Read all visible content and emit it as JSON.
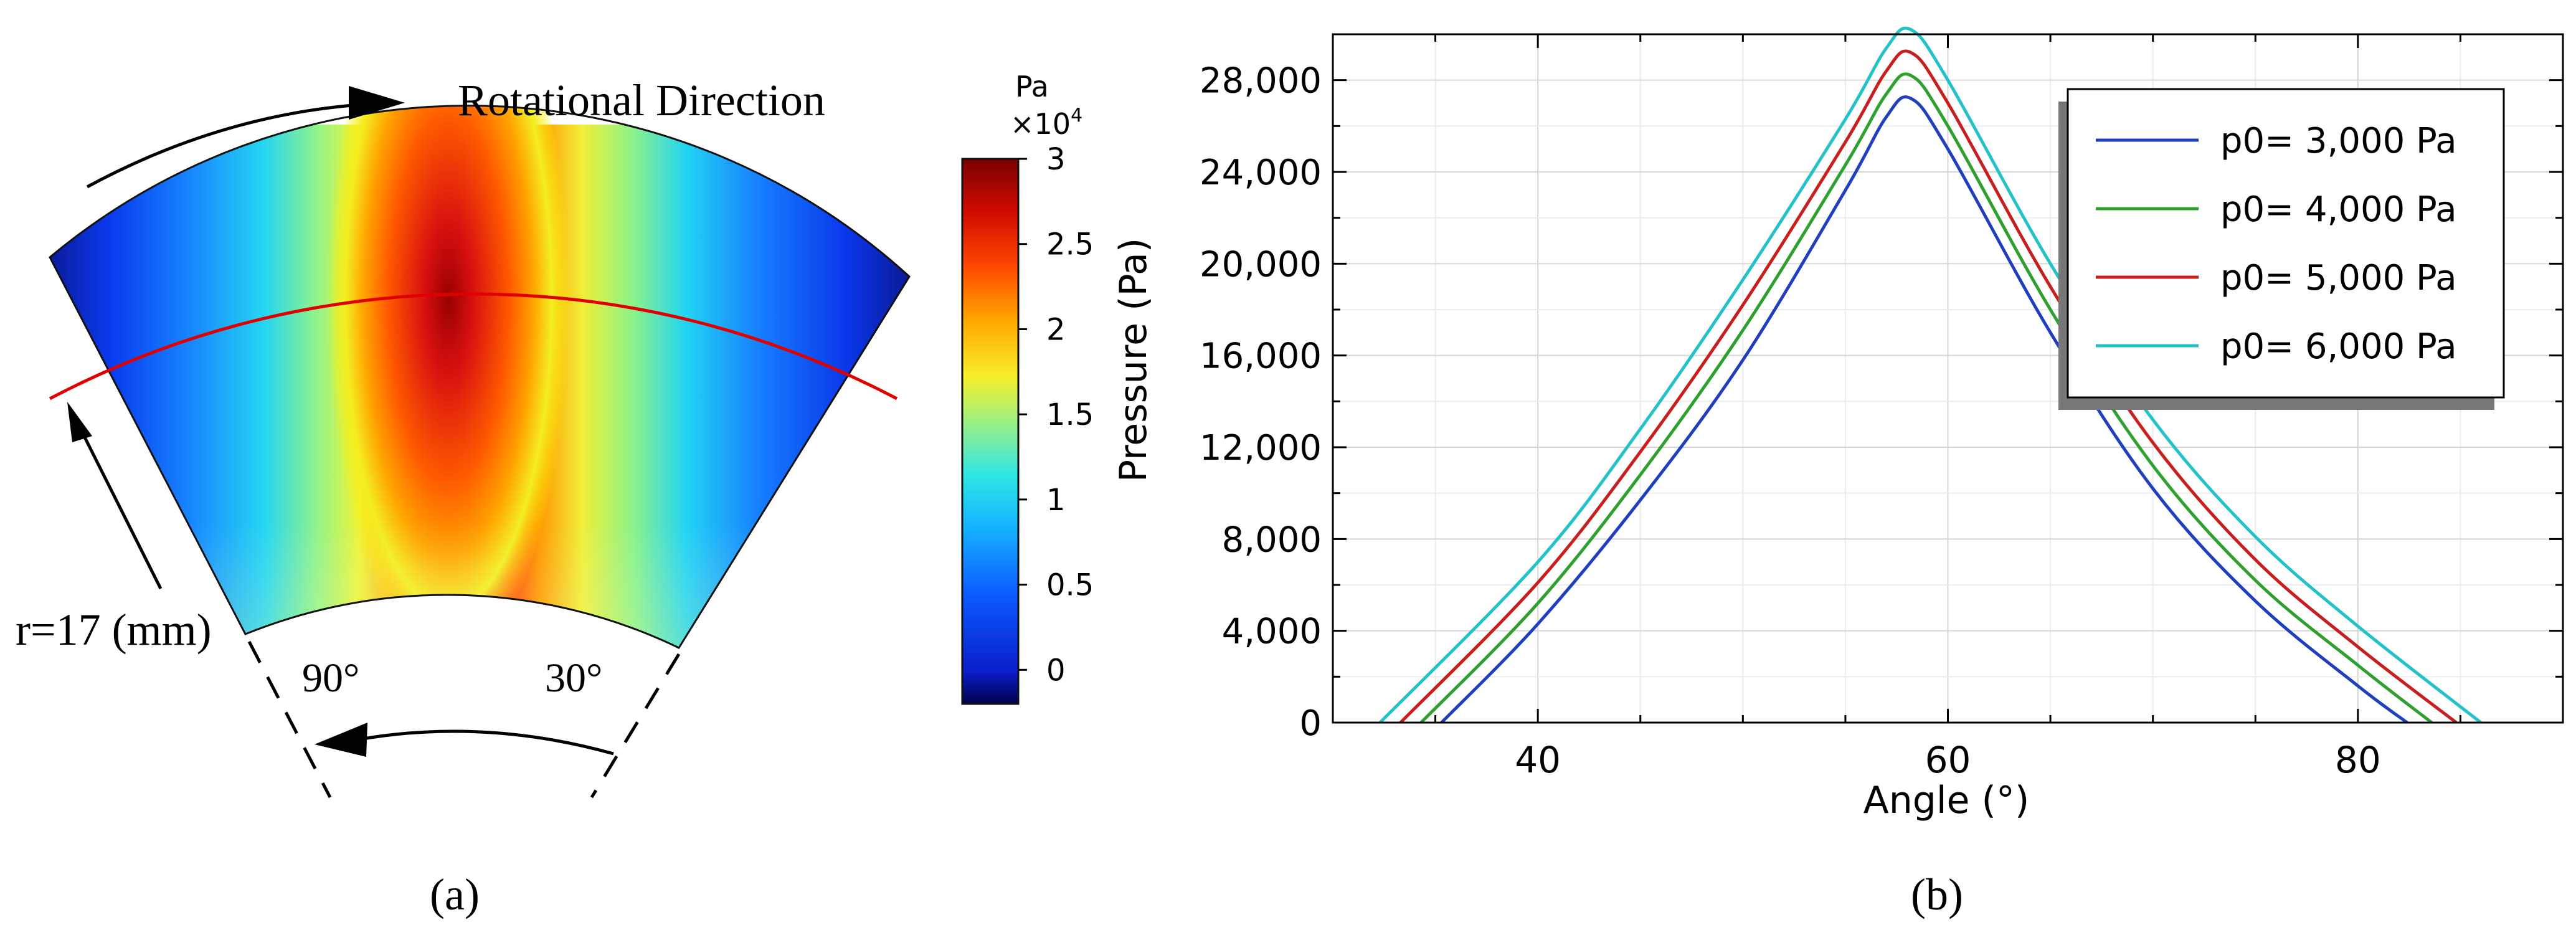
{
  "panel_a": {
    "caption": "(a)",
    "rotation_label": "Rotational Direction",
    "radius_label": "r=17 (mm)",
    "angle_left_label": "90°",
    "angle_right_label": "30°",
    "colorbar": {
      "unit": "Pa",
      "multiplier": "×10",
      "multiplier_exp": "4",
      "label": "Pressure (Pa)",
      "ticks": [
        "3",
        "2.5",
        "2",
        "1.5",
        "1",
        "0.5",
        "0"
      ],
      "range": [
        -0.2,
        3.0
      ]
    }
  },
  "panel_b": {
    "caption": "(b)"
  },
  "chart_data": {
    "type": "line",
    "xlabel": "Angle (°)",
    "ylabel": "",
    "xlim": [
      30,
      90
    ],
    "ylim": [
      0,
      30000
    ],
    "xticks": [
      40,
      60,
      80
    ],
    "xtick_labels": [
      "40",
      "60",
      "80"
    ],
    "yticks": [
      0,
      4000,
      8000,
      12000,
      16000,
      20000,
      24000,
      28000
    ],
    "ytick_labels": [
      "0",
      "4,000",
      "8,000",
      "12,000",
      "16,000",
      "20,000",
      "24,000",
      "28,000"
    ],
    "grid": true,
    "legend_position": "top-right",
    "series": [
      {
        "name": "p0= 3,000 Pa",
        "color": "#1f3fbf",
        "x": [
          35.3,
          40,
          45,
          50,
          55,
          57,
          58.2,
          60,
          65,
          70,
          75,
          80,
          82.4
        ],
        "y": [
          0,
          4300,
          9700,
          15800,
          23200,
          26400,
          27200,
          25000,
          17000,
          10200,
          5300,
          1600,
          0
        ]
      },
      {
        "name": "p0= 4,000 Pa",
        "color": "#2ea02e",
        "x": [
          34.3,
          40,
          45,
          50,
          55,
          57,
          58.2,
          60,
          65,
          70,
          75,
          80,
          83.6
        ],
        "y": [
          0,
          5200,
          10800,
          17100,
          24300,
          27400,
          28200,
          26000,
          18000,
          11200,
          6200,
          2500,
          0
        ]
      },
      {
        "name": "p0= 5,000 Pa",
        "color": "#c81e1e",
        "x": [
          33.3,
          40,
          45,
          50,
          55,
          57,
          58.2,
          60,
          65,
          70,
          75,
          80,
          84.8
        ],
        "y": [
          0,
          6100,
          11800,
          18200,
          25300,
          28400,
          29200,
          27000,
          19000,
          12200,
          7100,
          3300,
          0
        ]
      },
      {
        "name": "p0= 6,000 Pa",
        "color": "#22c2c8",
        "x": [
          32.3,
          40,
          45,
          50,
          55,
          57,
          58.2,
          60,
          65,
          70,
          75,
          80,
          86.0
        ],
        "y": [
          0,
          7000,
          12800,
          19300,
          26300,
          29400,
          30200,
          28000,
          20000,
          13200,
          8100,
          4200,
          0
        ]
      }
    ]
  }
}
